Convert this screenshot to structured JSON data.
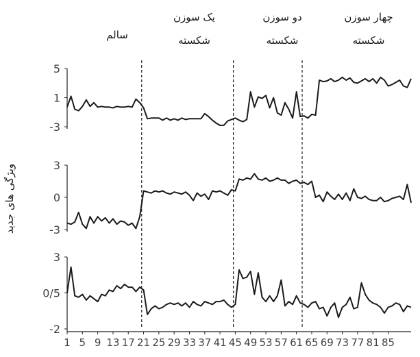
{
  "headers": [
    {
      "line1": "",
      "line2": "سالم"
    },
    {
      "line1": "یک سوزن",
      "line2": "شکسته"
    },
    {
      "line1": "دو سوزن",
      "line2": "شکسته"
    },
    {
      "line1": "چهار سوزن",
      "line2": "شکسته"
    }
  ],
  "chart_data": {
    "type": "line",
    "ylabel": "ویژگی های جدید",
    "x": {
      "min": 1,
      "max": 92,
      "tick_values": [
        1,
        5,
        9,
        13,
        17,
        21,
        25,
        29,
        33,
        37,
        41,
        45,
        49,
        53,
        57,
        61,
        65,
        69,
        73,
        77,
        81,
        85
      ],
      "tick_labels": [
        "1",
        "5",
        "9",
        "13",
        "17",
        "21",
        "25",
        "29",
        "33",
        "37",
        "41",
        "45",
        "49",
        "53",
        "57",
        "61",
        "65",
        "69",
        "73",
        "77",
        "81",
        "85"
      ]
    },
    "boundaries": [
      20.5,
      44.5,
      62.5
    ],
    "panels": [
      {
        "ylim": [
          -3,
          5
        ],
        "tick_values": [
          5,
          1,
          -3
        ],
        "tick_labels": [
          "5",
          "1",
          "-3"
        ],
        "values": [
          -0.3,
          1.2,
          -0.6,
          -0.8,
          -0.2,
          0.7,
          -0.2,
          0.3,
          -0.3,
          -0.2,
          -0.3,
          -0.3,
          -0.4,
          -0.2,
          -0.3,
          -0.3,
          -0.2,
          -0.3,
          0.8,
          0.3,
          -0.4,
          -1.9,
          -1.8,
          -1.8,
          -1.8,
          -2.1,
          -1.8,
          -2.1,
          -1.9,
          -2.1,
          -1.8,
          -2.0,
          -1.9,
          -1.9,
          -1.9,
          -1.9,
          -1.2,
          -1.6,
          -2.1,
          -2.5,
          -2.8,
          -2.8,
          -2.2,
          -2.0,
          -1.8,
          -2.1,
          -2.3,
          -2.0,
          1.8,
          -0.3,
          1.1,
          0.9,
          1.3,
          -0.4,
          1.0,
          -1.1,
          -1.4,
          0.3,
          -0.6,
          -1.8,
          1.8,
          -1.6,
          -1.5,
          -1.8,
          -1.3,
          -1.4,
          3.4,
          3.2,
          3.3,
          3.6,
          3.2,
          3.4,
          3.8,
          3.4,
          3.7,
          3.1,
          3.0,
          3.3,
          3.6,
          3.2,
          3.6,
          3.0,
          3.8,
          3.4,
          2.6,
          2.8,
          3.1,
          3.4,
          2.6,
          2.4,
          3.6
        ]
      },
      {
        "ylim": [
          -3,
          3
        ],
        "tick_values": [
          3,
          0,
          -3
        ],
        "tick_labels": [
          "3",
          "0",
          "-3"
        ],
        "values": [
          -2.4,
          -2.5,
          -2.3,
          -1.4,
          -2.5,
          -2.9,
          -1.8,
          -2.4,
          -1.8,
          -2.2,
          -1.9,
          -2.4,
          -2.0,
          -2.5,
          -2.2,
          -2.3,
          -2.6,
          -2.4,
          -2.9,
          -1.8,
          0.6,
          0.5,
          0.4,
          0.6,
          0.5,
          0.6,
          0.4,
          0.3,
          0.5,
          0.4,
          0.3,
          0.5,
          0.2,
          -0.3,
          0.4,
          0.1,
          0.3,
          -0.2,
          0.6,
          0.5,
          0.6,
          0.4,
          0.2,
          0.7,
          0.6,
          1.7,
          1.6,
          1.8,
          1.7,
          2.2,
          1.7,
          1.6,
          1.8,
          1.5,
          1.6,
          1.8,
          1.6,
          1.6,
          1.3,
          1.5,
          1.6,
          1.3,
          1.4,
          1.2,
          1.5,
          0.0,
          0.2,
          -0.4,
          0.5,
          0.1,
          -0.2,
          0.3,
          -0.2,
          0.4,
          -0.3,
          0.8,
          0.0,
          -0.1,
          0.1,
          -0.2,
          -0.3,
          -0.3,
          0.0,
          -0.4,
          -0.3,
          -0.1,
          0.0,
          0.1,
          -0.2,
          1.2,
          -0.5
        ]
      },
      {
        "ylim": [
          -2,
          3
        ],
        "tick_values": [
          3,
          0.5,
          -2
        ],
        "tick_labels": [
          "3",
          "0/5",
          "-2"
        ],
        "values": [
          0.5,
          2.3,
          0.3,
          0.2,
          0.4,
          0.0,
          0.3,
          0.1,
          -0.1,
          0.4,
          0.3,
          0.7,
          0.6,
          1.0,
          0.8,
          1.1,
          0.9,
          0.9,
          0.6,
          0.9,
          0.7,
          -1.0,
          -0.6,
          -0.4,
          -0.6,
          -0.5,
          -0.3,
          -0.2,
          -0.3,
          -0.2,
          -0.4,
          -0.2,
          -0.5,
          -0.1,
          -0.3,
          -0.4,
          -0.1,
          -0.2,
          -0.3,
          -0.1,
          -0.1,
          0.0,
          -0.3,
          -0.5,
          -0.3,
          2.1,
          1.5,
          1.6,
          2.0,
          0.4,
          1.9,
          0.2,
          -0.1,
          0.3,
          -0.1,
          0.3,
          1.4,
          -0.4,
          -0.1,
          -0.3,
          0.3,
          -0.2,
          -0.3,
          -0.5,
          -0.2,
          -0.1,
          -0.6,
          -0.5,
          -1.1,
          -0.5,
          -0.2,
          -1.2,
          -0.5,
          -0.3,
          0.2,
          -0.6,
          -0.5,
          1.2,
          0.4,
          0.0,
          -0.2,
          -0.3,
          -0.5,
          -0.9,
          -0.5,
          -0.4,
          -0.2,
          -0.3,
          -0.8,
          -0.4,
          -0.5
        ]
      }
    ]
  }
}
